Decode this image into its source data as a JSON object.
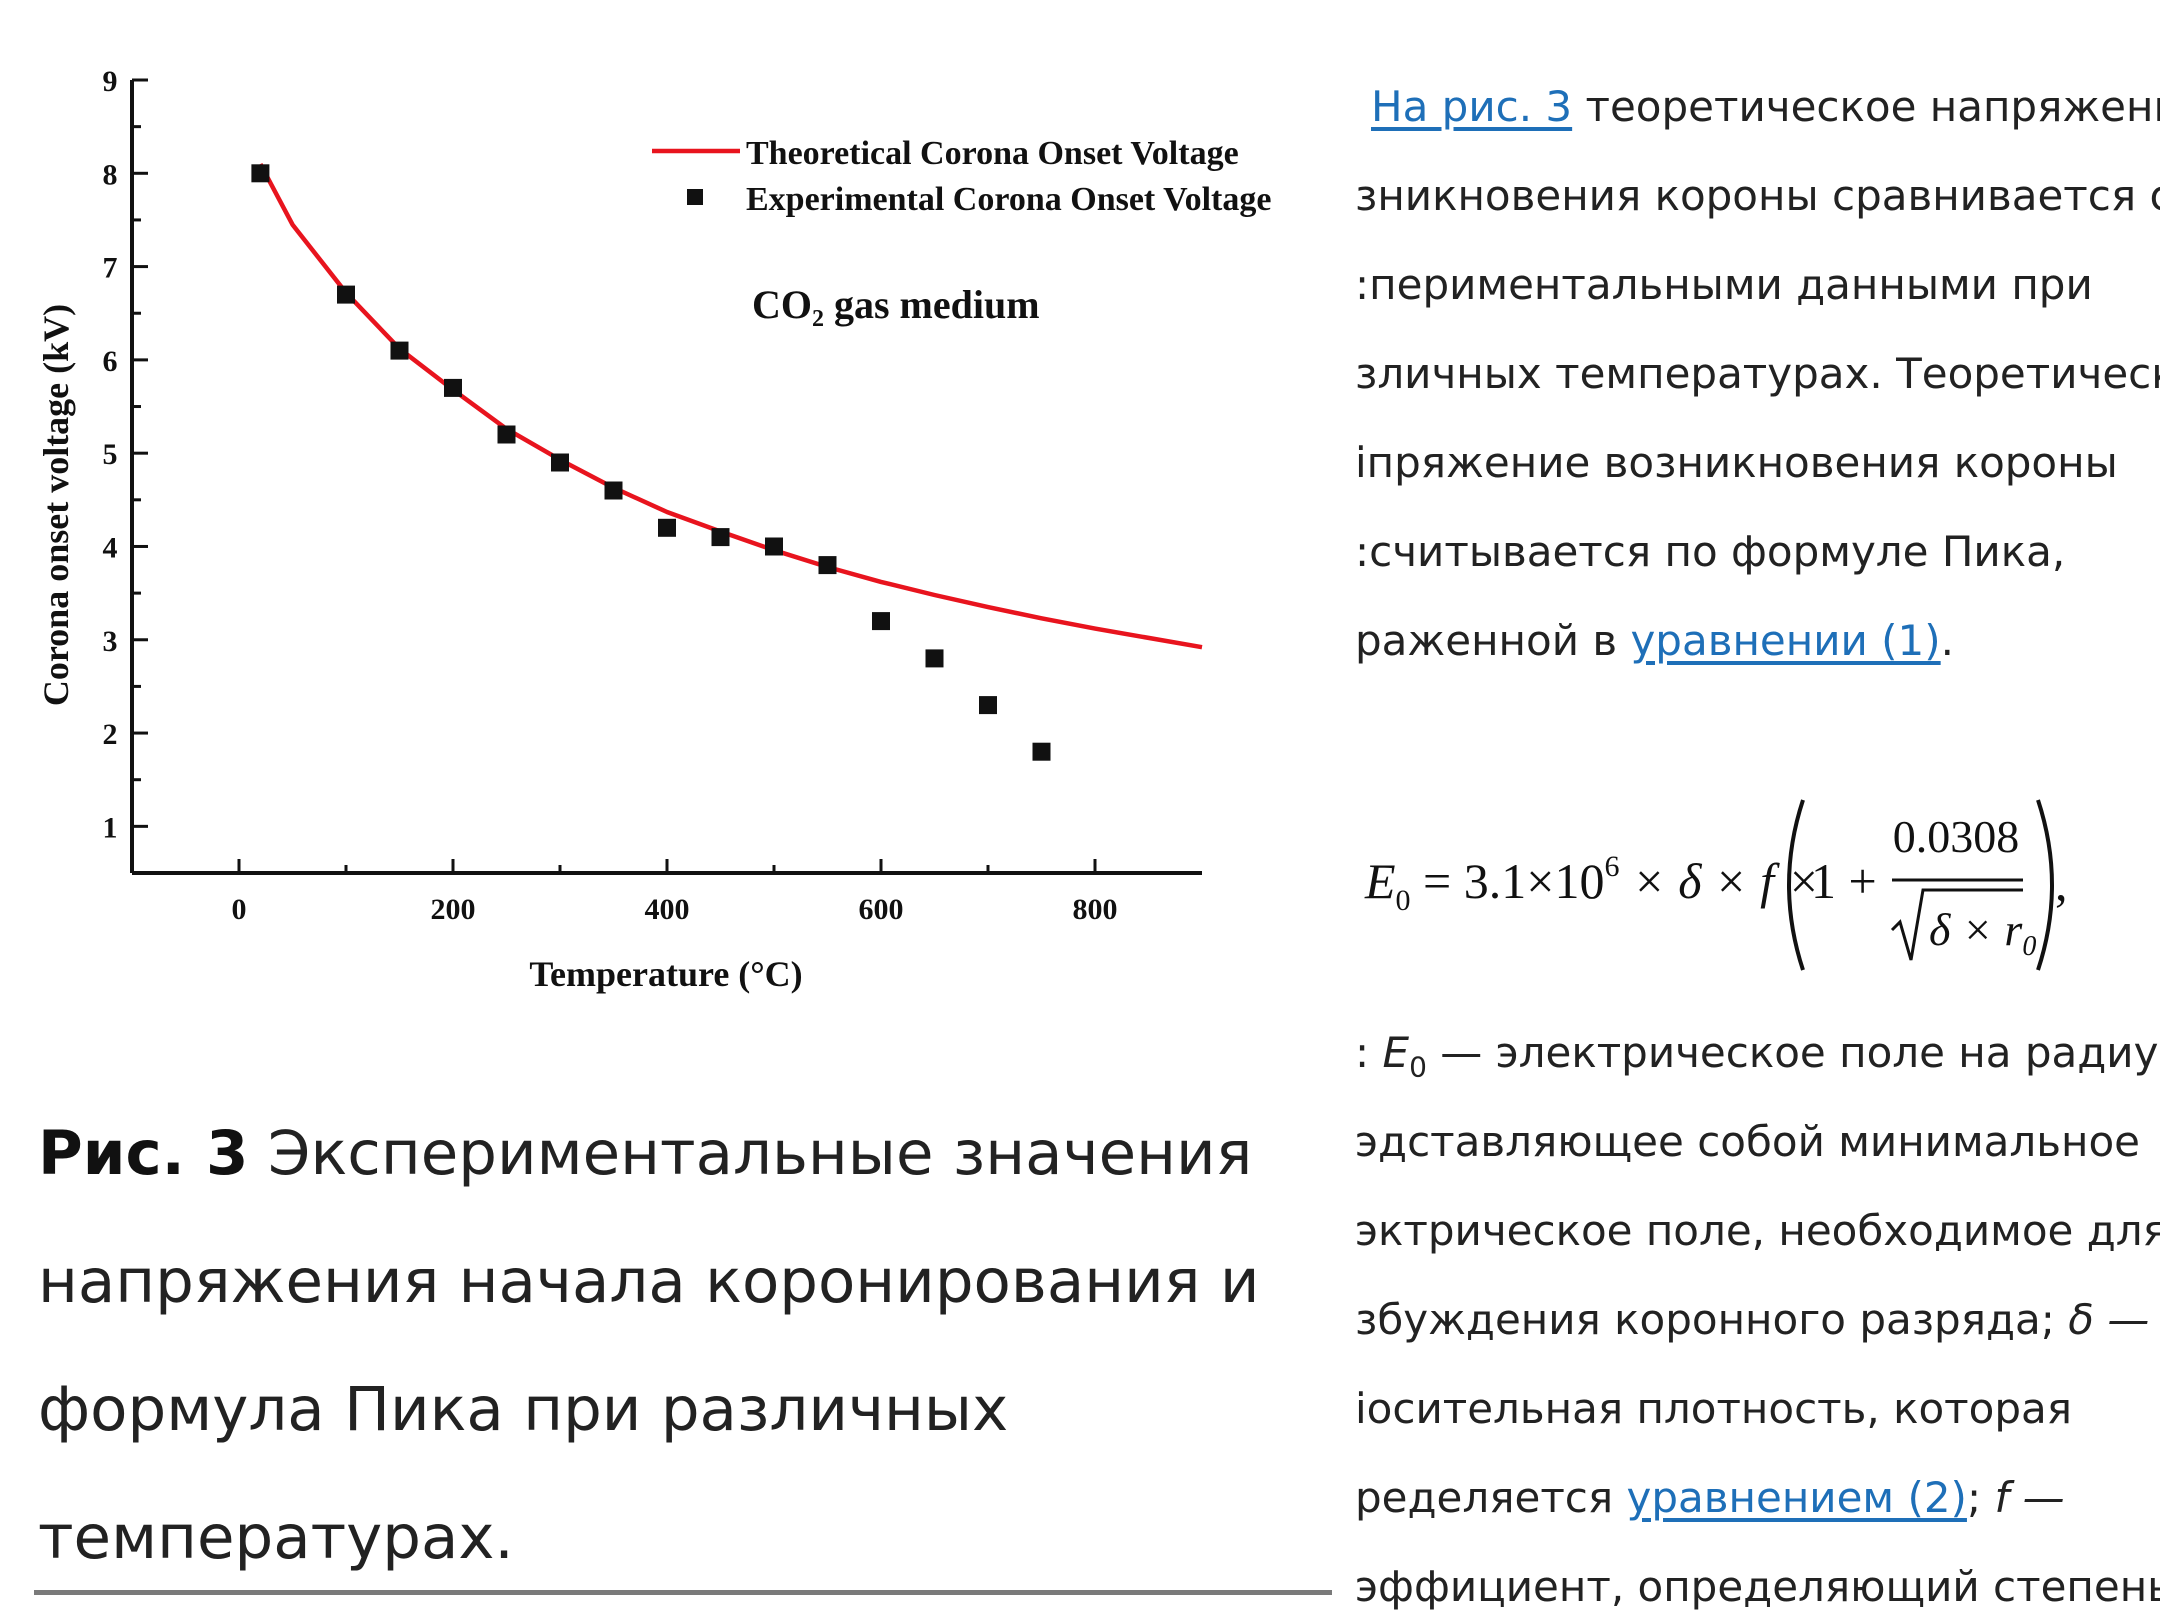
{
  "chart_data": {
    "type": "line+scatter",
    "xlabel": "Temperature (°C)",
    "ylabel": "Corona onset voltage (kV)",
    "xlim": [
      -100,
      900
    ],
    "ylim": [
      0.5,
      9
    ],
    "x_ticks": [
      "0",
      "200",
      "400",
      "600",
      "800"
    ],
    "y_ticks": [
      "1",
      "2",
      "3",
      "4",
      "5",
      "6",
      "7",
      "8",
      "9"
    ],
    "annotation": "CO₂ gas medium",
    "legend_position": "top-right",
    "series": [
      {
        "name": "Theoretical Corona Onset Voltage",
        "kind": "line",
        "color": "#e8141e",
        "x": [
          20,
          50,
          100,
          150,
          200,
          250,
          300,
          350,
          400,
          450,
          500,
          550,
          600,
          650,
          700,
          750,
          800,
          850,
          900
        ],
        "y": [
          8.1,
          7.45,
          6.72,
          6.12,
          5.68,
          5.26,
          4.93,
          4.63,
          4.37,
          4.16,
          3.96,
          3.78,
          3.62,
          3.48,
          3.35,
          3.23,
          3.12,
          3.02,
          2.92
        ]
      },
      {
        "name": "Experimental Corona Onset Voltage",
        "kind": "scatter",
        "color": "#111111",
        "x": [
          20,
          100,
          150,
          200,
          250,
          300,
          350,
          400,
          450,
          500,
          550,
          600,
          650,
          700,
          750
        ],
        "y": [
          8.0,
          6.7,
          6.1,
          5.7,
          5.2,
          4.9,
          4.6,
          4.2,
          4.1,
          4.0,
          3.8,
          3.2,
          2.8,
          2.3,
          1.8
        ]
      }
    ]
  },
  "caption": {
    "label": "Рис. 3",
    "text": " Экспериментальные значения напряжения начала коронирования и формула Пика при различных температурах."
  },
  "article": {
    "line1_link": "На рис. 3",
    "line1_rest": " теоретическое напряжение",
    "line2": "зникновения короны сравнивается с",
    "line3": ":периментальными данными при",
    "line4": "зличных температурах. Теоретическо",
    "line5": "іпряжение возникновения короны",
    "line6": ":считывается по формуле Пика,",
    "line7_pre": "раженной в ",
    "line7_link": "уравнении (1)",
    "line7_post": ".",
    "formula": {
      "lhs": "E",
      "lhs_sub": "0",
      "eq": " = 3.1×10",
      "exp": "6",
      "mid": " × δ × f ×",
      "one_plus": "1 +",
      "num": "0.0308",
      "den": "δ × r",
      "den_sub": "0",
      "tail": ","
    },
    "line8_pre": ": ",
    "line8_var": "E",
    "line8_sub": "0",
    "line8_rest": " — электрическое поле на радиусе",
    "line9": "эдставляющее собой минимальное",
    "line10": "эктрическое поле, необходимое для",
    "line11_text": "збуждения коронного разряда; ",
    "line11_var": "δ —",
    "line12": "іосительная плотность, которая",
    "line13_pre": "ределяется ",
    "line13_link": "уравнением (2)",
    "line13_post": "; ",
    "line13_var": "f —",
    "line14": "эффициент, определяющий степень"
  }
}
